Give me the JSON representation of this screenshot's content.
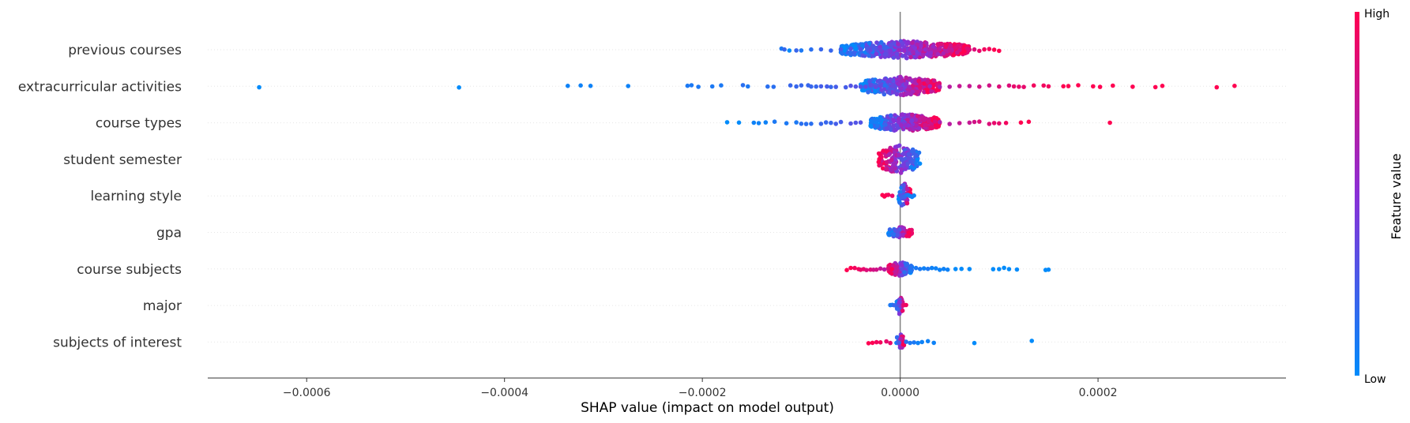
{
  "chart_data": {
    "type": "scatter",
    "subtype": "shap-beeswarm",
    "xlabel": "SHAP value (impact on model output)",
    "xlim": [
      -0.0007,
      0.00039
    ],
    "xticks": [
      -0.0006,
      -0.0004,
      -0.0002,
      0.0,
      0.0002
    ],
    "xtick_labels": [
      "−0.0006",
      "−0.0004",
      "−0.0002",
      "0.0000",
      "0.0002"
    ],
    "grid": false,
    "colorbar": {
      "title": "Feature value",
      "high_label": "High",
      "low_label": "Low",
      "low_color": "#008bfb",
      "high_color": "#ff0051"
    },
    "features": [
      {
        "name": "previous courses",
        "points": [
          [
            -0.00012,
            0.1
          ],
          [
            -0.000117,
            0.2
          ],
          [
            -0.000112,
            0.0
          ],
          [
            -0.000105,
            0.2
          ],
          [
            -0.0001,
            0.1
          ],
          [
            -9e-05,
            0.15
          ],
          [
            -8e-05,
            0.2
          ],
          [
            -7e-05,
            0.2
          ],
          [
            -6e-05,
            0.25
          ],
          [
            -5e-05,
            0.3
          ],
          [
            -4e-05,
            0.3
          ],
          [
            -3e-05,
            0.35
          ],
          [
            -2e-05,
            0.4
          ],
          [
            -1e-05,
            0.45
          ],
          [
            1e-05,
            0.55
          ],
          [
            2e-05,
            0.6
          ],
          [
            3e-05,
            0.65
          ],
          [
            4e-05,
            0.7
          ],
          [
            5e-05,
            0.75
          ],
          [
            6e-05,
            0.8
          ],
          [
            7e-05,
            0.85
          ],
          [
            7.5e-05,
            0.85
          ],
          [
            8e-05,
            0.9
          ],
          [
            8.5e-05,
            0.95
          ],
          [
            9e-05,
            0.95
          ],
          [
            9.5e-05,
            1.0
          ],
          [
            0.0001,
            1.0
          ]
        ],
        "core": {
          "min": -6e-05,
          "max": 7e-05,
          "height": 1.0,
          "reversed": false
        }
      },
      {
        "name": "extracurricular activities",
        "points": [
          [
            -0.000648,
            0.0
          ],
          [
            -0.000446,
            0.0
          ],
          [
            -0.000336,
            0.05
          ],
          [
            -0.000323,
            0.05
          ],
          [
            -0.000313,
            0.05
          ],
          [
            -0.000275,
            0.05
          ],
          [
            -0.000215,
            0.1
          ],
          [
            -0.000211,
            0.1
          ],
          [
            -0.000204,
            0.1
          ],
          [
            -0.00019,
            0.1
          ],
          [
            -0.000181,
            0.1
          ],
          [
            -0.000159,
            0.15
          ],
          [
            -0.000154,
            0.1
          ],
          [
            -0.000134,
            0.15
          ],
          [
            -0.000128,
            0.15
          ],
          [
            -0.000111,
            0.2
          ],
          [
            -0.000105,
            0.2
          ],
          [
            -0.0001,
            0.2
          ],
          [
            -9.3e-05,
            0.2
          ],
          [
            -9e-05,
            0.2
          ],
          [
            -8.5e-05,
            0.2
          ],
          [
            -8e-05,
            0.25
          ],
          [
            -7.4e-05,
            0.25
          ],
          [
            -7e-05,
            0.2
          ],
          [
            -6.5e-05,
            0.25
          ],
          [
            -5.5e-05,
            0.25
          ],
          [
            -5e-05,
            0.3
          ],
          [
            -4.5e-05,
            0.3
          ],
          [
            -4e-05,
            0.3
          ],
          [
            -3.5e-05,
            0.35
          ],
          [
            -3e-05,
            0.35
          ],
          [
            -2.5e-05,
            0.35
          ],
          [
            3e-05,
            0.6
          ],
          [
            4e-05,
            0.65
          ],
          [
            5e-05,
            0.7
          ],
          [
            6e-05,
            0.75
          ],
          [
            7e-05,
            0.75
          ],
          [
            8e-05,
            0.8
          ],
          [
            9e-05,
            0.8
          ],
          [
            0.0001,
            0.85
          ],
          [
            0.00011,
            0.85
          ],
          [
            0.000115,
            0.9
          ],
          [
            0.00012,
            0.9
          ],
          [
            0.000125,
            0.9
          ],
          [
            0.000135,
            0.95
          ],
          [
            0.000145,
            0.95
          ],
          [
            0.00015,
            0.95
          ],
          [
            0.000165,
            1.0
          ],
          [
            0.00017,
            1.0
          ],
          [
            0.00018,
            1.0
          ],
          [
            0.000195,
            1.0
          ],
          [
            0.000202,
            1.0
          ],
          [
            0.000215,
            1.0
          ],
          [
            0.000235,
            1.0
          ],
          [
            0.000258,
            1.0
          ],
          [
            0.000265,
            1.0
          ],
          [
            0.00032,
            1.0
          ],
          [
            0.000338,
            1.0
          ]
        ],
        "core": {
          "min": -4e-05,
          "max": 4e-05,
          "height": 1.1,
          "reversed": false
        }
      },
      {
        "name": "course types",
        "points": [
          [
            -0.000175,
            0.0
          ],
          [
            -0.000163,
            0.0
          ],
          [
            -0.000148,
            0.05
          ],
          [
            -0.000143,
            0.05
          ],
          [
            -0.000136,
            0.05
          ],
          [
            -0.000127,
            0.1
          ],
          [
            -0.000115,
            0.1
          ],
          [
            -0.000105,
            0.1
          ],
          [
            -0.0001,
            0.15
          ],
          [
            -9.5e-05,
            0.15
          ],
          [
            -9e-05,
            0.15
          ],
          [
            -8e-05,
            0.2
          ],
          [
            -7.5e-05,
            0.2
          ],
          [
            -7e-05,
            0.2
          ],
          [
            -6.5e-05,
            0.25
          ],
          [
            -6e-05,
            0.25
          ],
          [
            -5e-05,
            0.3
          ],
          [
            -4.5e-05,
            0.3
          ],
          [
            -4e-05,
            0.3
          ],
          [
            4e-05,
            0.65
          ],
          [
            5e-05,
            0.7
          ],
          [
            6e-05,
            0.75
          ],
          [
            7e-05,
            0.75
          ],
          [
            7.5e-05,
            0.8
          ],
          [
            8e-05,
            0.85
          ],
          [
            9e-05,
            0.85
          ],
          [
            9.5e-05,
            0.9
          ],
          [
            0.0001,
            0.9
          ],
          [
            0.000107,
            0.95
          ],
          [
            0.000122,
            1.0
          ],
          [
            0.00013,
            1.0
          ],
          [
            0.000212,
            1.0
          ]
        ],
        "core": {
          "min": -3e-05,
          "max": 4e-05,
          "height": 1.0,
          "reversed": false
        }
      },
      {
        "name": "student semester",
        "points": [],
        "core": {
          "min": -2.2e-05,
          "max": 2e-05,
          "height": 1.6,
          "reversed": true
        }
      },
      {
        "name": "learning style",
        "points": [
          [
            -1.8e-05,
            1.0
          ],
          [
            -1.6e-05,
            1.0
          ],
          [
            -1.4e-05,
            1.0
          ],
          [
            -1.2e-05,
            0.95
          ],
          [
            -8e-06,
            0.9
          ],
          [
            0.0,
            0.3
          ],
          [
            2e-06,
            0.25
          ],
          [
            4e-06,
            0.2
          ],
          [
            6e-06,
            0.15
          ],
          [
            8e-06,
            0.1
          ],
          [
            1e-05,
            0.05
          ],
          [
            1.2e-05,
            0.05
          ],
          [
            1.4e-05,
            0.05
          ]
        ],
        "core": {
          "min": -1.5e-06,
          "max": 1.05e-05,
          "height": 1.4,
          "reversed": false
        }
      },
      {
        "name": "gpa",
        "points": [],
        "core": {
          "min": -1.2e-05,
          "max": 1.2e-05,
          "height": 0.65,
          "reversed": false
        }
      },
      {
        "name": "course subjects",
        "points": [
          [
            -5.4e-05,
            1.0
          ],
          [
            -5e-05,
            1.0
          ],
          [
            -4.6e-05,
            0.95
          ],
          [
            -4.2e-05,
            0.95
          ],
          [
            -4e-05,
            0.9
          ],
          [
            -3.7e-05,
            0.9
          ],
          [
            -3.4e-05,
            0.85
          ],
          [
            -3e-05,
            0.85
          ],
          [
            -2.7e-05,
            0.8
          ],
          [
            -2.4e-05,
            0.8
          ],
          [
            -2e-05,
            0.75
          ],
          [
            -1.6e-05,
            0.7
          ],
          [
            1.6e-05,
            0.1
          ],
          [
            2e-05,
            0.1
          ],
          [
            2.4e-05,
            0.05
          ],
          [
            2.8e-05,
            0.1
          ],
          [
            3.2e-05,
            0.05
          ],
          [
            3.6e-05,
            0.05
          ],
          [
            4e-05,
            0.05
          ],
          [
            4.4e-05,
            0.05
          ],
          [
            4.8e-05,
            0.05
          ],
          [
            5.6e-05,
            0.0
          ],
          [
            6.2e-05,
            0.0
          ],
          [
            7e-05,
            0.0
          ],
          [
            9.4e-05,
            0.0
          ],
          [
            0.0001,
            0.0
          ],
          [
            0.000105,
            0.0
          ],
          [
            0.00011,
            0.0
          ],
          [
            0.000118,
            0.0
          ],
          [
            0.000147,
            0.0
          ],
          [
            0.00015,
            0.0
          ]
        ],
        "core": {
          "min": -1.2e-05,
          "max": 1.2e-05,
          "height": 0.8,
          "reversed": true
        }
      },
      {
        "name": "major",
        "points": [
          [
            -1e-05,
            0.1
          ],
          [
            -8e-06,
            0.1
          ],
          [
            -6e-06,
            0.2
          ],
          [
            4e-06,
            0.9
          ],
          [
            6e-06,
            0.95
          ]
        ],
        "core": {
          "min": -4e-06,
          "max": 3e-06,
          "height": 1.0,
          "reversed": false
        }
      },
      {
        "name": "subjects of interest",
        "points": [
          [
            -3.2e-05,
            1.0
          ],
          [
            -2.8e-05,
            1.0
          ],
          [
            -2.4e-05,
            0.95
          ],
          [
            -2e-05,
            0.95
          ],
          [
            -1.4e-05,
            0.9
          ],
          [
            -1e-05,
            0.9
          ],
          [
            6e-06,
            0.15
          ],
          [
            1e-05,
            0.1
          ],
          [
            1.4e-05,
            0.1
          ],
          [
            1.8e-05,
            0.05
          ],
          [
            2.2e-05,
            0.05
          ],
          [
            2.8e-05,
            0.05
          ],
          [
            3.4e-05,
            0.05
          ],
          [
            7.5e-05,
            0.0
          ],
          [
            0.000133,
            0.0
          ]
        ],
        "core": {
          "min": -4e-06,
          "max": 4e-06,
          "height": 1.0,
          "reversed": false
        }
      }
    ]
  }
}
